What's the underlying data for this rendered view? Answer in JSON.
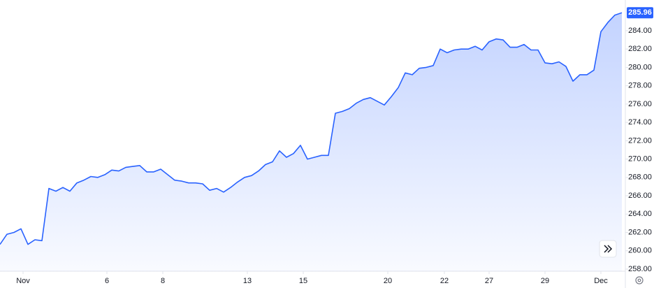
{
  "chart_data": {
    "type": "area",
    "color": "#2962ff",
    "values": [
      260.7,
      261.8,
      262.0,
      262.4,
      260.7,
      261.2,
      261.1,
      266.8,
      266.5,
      266.9,
      266.5,
      267.4,
      267.7,
      268.1,
      268.0,
      268.3,
      268.8,
      268.7,
      269.1,
      269.2,
      269.3,
      268.6,
      268.6,
      268.9,
      268.3,
      267.7,
      267.6,
      267.4,
      267.4,
      267.3,
      266.6,
      266.8,
      266.4,
      266.9,
      267.5,
      268.0,
      268.2,
      268.7,
      269.4,
      269.7,
      270.9,
      270.2,
      270.6,
      271.5,
      270.0,
      270.2,
      270.4,
      270.4,
      275.0,
      275.2,
      275.5,
      276.1,
      276.5,
      276.7,
      276.3,
      275.9,
      276.8,
      277.8,
      279.4,
      279.2,
      279.9,
      280.0,
      280.2,
      282.0,
      281.6,
      281.9,
      282.0,
      282.0,
      282.3,
      281.9,
      282.8,
      283.1,
      283.0,
      282.2,
      282.2,
      282.5,
      281.9,
      281.9,
      280.5,
      280.4,
      280.6,
      280.1,
      278.5,
      279.2,
      279.2,
      279.7,
      283.9,
      284.9,
      285.7,
      285.96
    ],
    "xlim": [
      0,
      89.5
    ],
    "xticks": [
      {
        "value": 3.3,
        "label": "Nov"
      },
      {
        "value": 15.3,
        "label": "6"
      },
      {
        "value": 23.3,
        "label": "8"
      },
      {
        "value": 35.4,
        "label": "13"
      },
      {
        "value": 43.4,
        "label": "15"
      },
      {
        "value": 55.5,
        "label": "20"
      },
      {
        "value": 63.6,
        "label": "22"
      },
      {
        "value": 70.0,
        "label": "27"
      },
      {
        "value": 78.0,
        "label": "29"
      },
      {
        "value": 86.0,
        "label": "Dec"
      }
    ],
    "ylim": [
      257.77,
      287.35
    ],
    "yticks": [
      {
        "value": 258,
        "label": "258.00"
      },
      {
        "value": 260,
        "label": "260.00"
      },
      {
        "value": 262,
        "label": "262.00"
      },
      {
        "value": 264,
        "label": "264.00"
      },
      {
        "value": 266,
        "label": "266.00"
      },
      {
        "value": 268,
        "label": "268.00"
      },
      {
        "value": 270,
        "label": "270.00"
      },
      {
        "value": 272,
        "label": "272.00"
      },
      {
        "value": 274,
        "label": "274.00"
      },
      {
        "value": 276,
        "label": "276.00"
      },
      {
        "value": 278,
        "label": "278.00"
      },
      {
        "value": 280,
        "label": "280.00"
      },
      {
        "value": 282,
        "label": "282.00"
      },
      {
        "value": 284,
        "label": "284.00"
      }
    ]
  }
}
